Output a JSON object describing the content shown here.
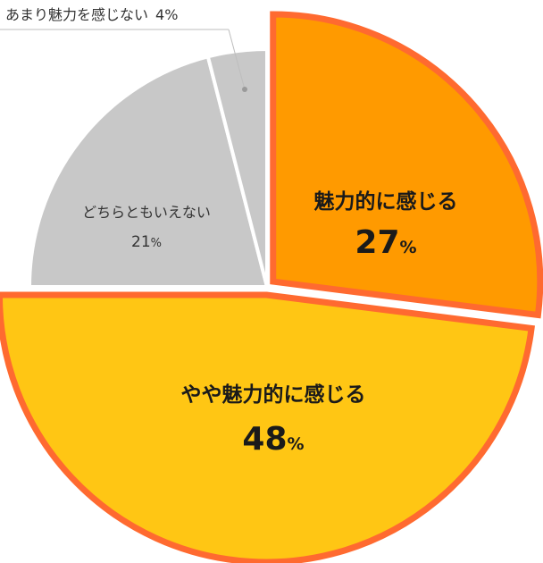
{
  "chart_data": {
    "type": "pie",
    "slices": [
      {
        "label": "魅力的に感じる",
        "value": 27,
        "value_text": "27",
        "unit": "%",
        "color": "#FF9A00",
        "exploded": true,
        "emphasis": true
      },
      {
        "label": "やや魅力的に感じる",
        "value": 48,
        "value_text": "48",
        "unit": "%",
        "color": "#FFC614",
        "exploded": true,
        "emphasis": true
      },
      {
        "label": "どちらともいえない",
        "value": 21,
        "value_text": "21",
        "unit": "%",
        "color": "#C8C8C8",
        "exploded": false,
        "emphasis": false
      },
      {
        "label": "あまり魅力を感じない",
        "value": 4,
        "value_text": "4",
        "unit": "%",
        "color": "#C8C8C8",
        "exploded": false,
        "emphasis": false
      }
    ],
    "highlight_border_color": "#FF6A30",
    "start_angle": "12 o'clock",
    "direction": "clockwise"
  }
}
